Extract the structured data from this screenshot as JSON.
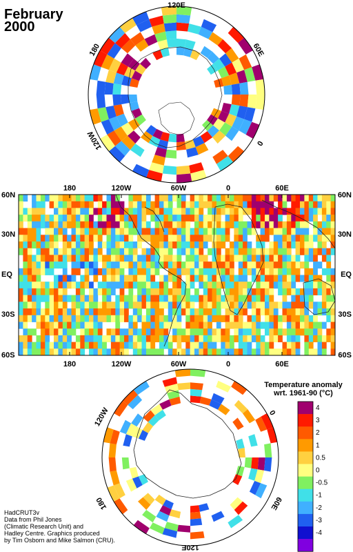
{
  "title": {
    "month": "February",
    "year": "2000"
  },
  "north_polar_labels": {
    "top": "120E",
    "right": "60E",
    "left": "180",
    "lower_left": "120W",
    "lower_right": "0"
  },
  "south_polar_labels": {
    "left": "120W",
    "right": "0",
    "bottom": "120E",
    "lower_left": "180",
    "lower_right": "60E"
  },
  "map_axis": {
    "lon_ticks": [
      "180",
      "120W",
      "60W",
      "0",
      "60E"
    ],
    "lat_ticks": [
      "60N",
      "30N",
      "EQ",
      "30S",
      "60S"
    ]
  },
  "legend": {
    "title_line1": "Temperature anomaly",
    "title_line2": "wrt. 1961-90  (°C)",
    "bins": [
      {
        "label": "4",
        "color": "#a0006e"
      },
      {
        "label": "3",
        "color": "#ff1a00"
      },
      {
        "label": "2",
        "color": "#ff5a00"
      },
      {
        "label": "1",
        "color": "#ff9a00"
      },
      {
        "label": "0.5",
        "color": "#ffd040"
      },
      {
        "label": "0",
        "color": "#ffff80"
      },
      {
        "label": "-0.5",
        "color": "#80f060"
      },
      {
        "label": "-1",
        "color": "#40e0e8"
      },
      {
        "label": "-2",
        "color": "#40b0ff"
      },
      {
        "label": "-3",
        "color": "#2060f0"
      },
      {
        "label": "-4",
        "color": "#1010d0"
      },
      {
        "label": "",
        "color": "#8000e0"
      }
    ]
  },
  "credits": [
    "HadCRUT3v",
    "Data from Phil Jones",
    "(Climatic Research Unit) and",
    "Hadley Centre.  Graphics produced",
    "by Tim Osborn and Mike Salmon (CRU)."
  ]
}
